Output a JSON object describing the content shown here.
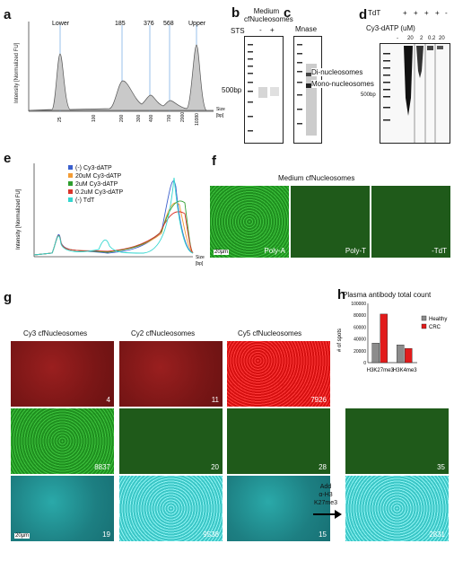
{
  "panels": {
    "a": "a",
    "b": "b",
    "c": "c",
    "d": "d",
    "e": "e",
    "f": "f",
    "g": "g",
    "h": "h"
  },
  "a": {
    "peaks": [
      "Lower",
      "185",
      "376",
      "568",
      "Upper"
    ],
    "ylabel": "Intensity [Normalized FU]",
    "xlabel_line1": "Size",
    "xlabel_line2": "[bp]",
    "ticks": [
      "25",
      "100",
      "200",
      "300",
      "400",
      "700",
      "2000",
      "10380"
    ]
  },
  "b": {
    "title_line1": "Medium",
    "title_line2": "cfNucleosomes",
    "lane_label": "STS",
    "minus": "-",
    "plus": "+",
    "marker": "500bp"
  },
  "c": {
    "title": "Mnase",
    "di": "Di-nucleosomes",
    "mono": "Mono-nucleosomes"
  },
  "d": {
    "tdt": "TdT",
    "cy3": "Cy3-dATP (uM)",
    "plus_signs": [
      "+",
      "+",
      "+",
      "+",
      "-"
    ],
    "conc": [
      "-",
      "20",
      "2",
      "0.2",
      "20"
    ],
    "marker": "500bp"
  },
  "e": {
    "ylabel": "Intensity [Normalized FU]",
    "xlabel_line1": "Size",
    "xlabel_line2": "[bp]",
    "legend": [
      {
        "name": "(-) Cy3-dATP",
        "color": "#3a5fcd"
      },
      {
        "name": "20uM Cy3-dATP",
        "color": "#f39c34"
      },
      {
        "name": "2uM Cy3-dATP",
        "color": "#2e9e2e"
      },
      {
        "name": "0.2uM Cy3-dATP",
        "color": "#d9342b"
      },
      {
        "name": "(-) TdT",
        "color": "#33d6cf"
      }
    ]
  },
  "f": {
    "title": "Medium cfNucleosomes",
    "tiles": [
      "Poly-A",
      "Poly-T",
      "-TdT"
    ],
    "scale": "20µm"
  },
  "g": {
    "columns": [
      "Cy3 cfNucleosomes",
      "Cy2 cfNucleosomes",
      "Cy5 cfNucleosomes"
    ],
    "rows": [
      [
        "4",
        "11",
        "7926"
      ],
      [
        "8837",
        "20",
        "28"
      ],
      [
        "19",
        "9538",
        "15"
      ]
    ],
    "extra": [
      "35",
      "2831"
    ],
    "arrow_line1": "Add",
    "arrow_line2": "α-H3",
    "arrow_line3": "K27me3",
    "scale": "20µm"
  },
  "h": {
    "title": "Plasma antibody total count",
    "ylabel": "# of spots",
    "yticks": [
      "0",
      "20000",
      "40000",
      "60000",
      "80000",
      "100000"
    ],
    "legend": [
      "Healthy",
      "CRC"
    ],
    "colors": {
      "Healthy": "#8c8c8c",
      "CRC": "#e21b1b"
    }
  },
  "chart_data": {
    "type": "bar",
    "title": "Plasma antibody total count",
    "ylabel": "# of spots",
    "categories": [
      "H3K27me3",
      "H3K4me3"
    ],
    "series": [
      {
        "name": "Healthy",
        "values": [
          33000,
          30000
        ]
      },
      {
        "name": "CRC",
        "values": [
          82000,
          24000
        ]
      }
    ],
    "ylim": [
      0,
      100000
    ],
    "legend": "right"
  }
}
